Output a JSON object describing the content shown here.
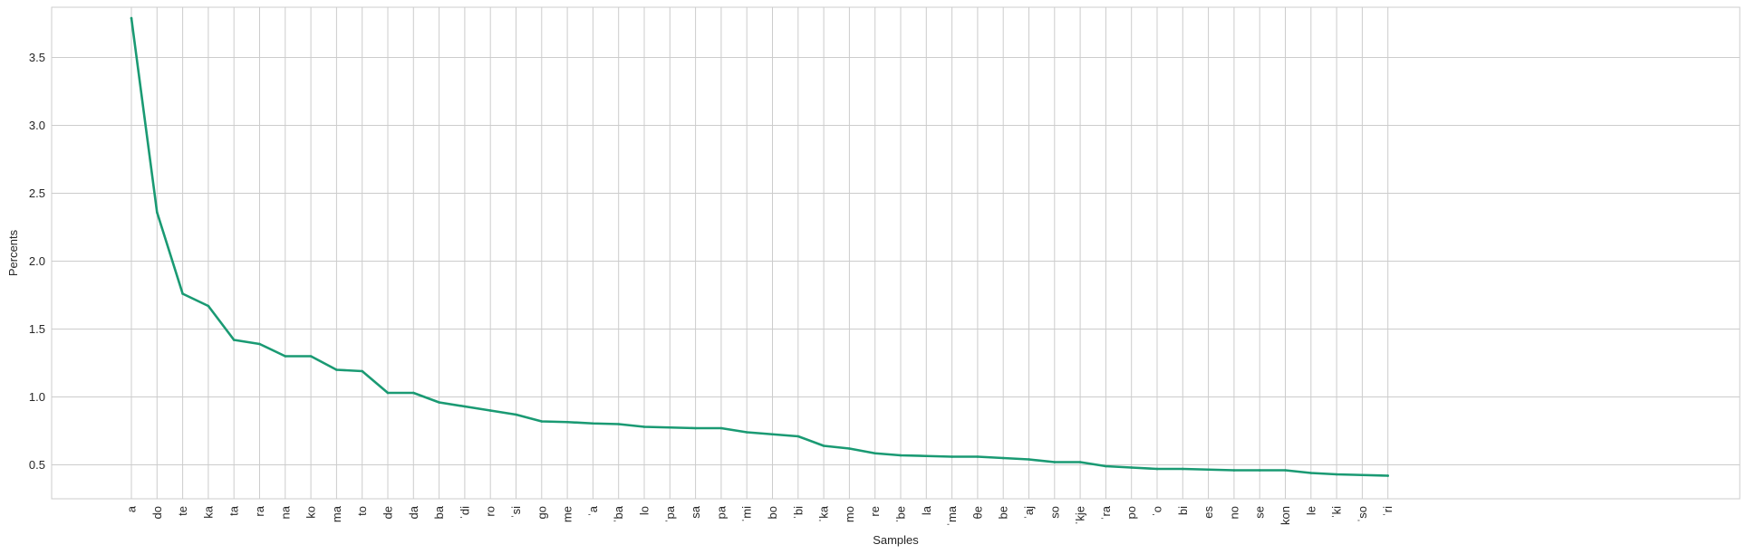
{
  "chart_data": {
    "type": "line",
    "xlabel": "Samples",
    "ylabel": "Percents",
    "ylim": [
      0.25,
      3.87
    ],
    "yticks": [
      0.5,
      1.0,
      1.5,
      2.0,
      2.5,
      3.0,
      3.5
    ],
    "ytick_labels": [
      "0.5",
      "1.0",
      "1.5",
      "2.0",
      "2.5",
      "3.0",
      "3.5"
    ],
    "grid": true,
    "line_color": "#1a9a73",
    "grid_color": "#cccccc",
    "categories": [
      "a",
      "do",
      "te",
      "ka",
      "ta",
      "ra",
      "na",
      "ko",
      "ma",
      "to",
      "de",
      "da",
      "ba",
      "ˈdi",
      "ro",
      "ˈsi",
      "go",
      "me",
      "ˈa",
      "ˈba",
      "lo",
      "ˈpa",
      "sa",
      "pa",
      "ˈmi",
      "bo",
      "ˈbi",
      "ˈka",
      "mo",
      "re",
      "ˈbe",
      "la",
      "ˈma",
      "θe",
      "be",
      "ˈaj",
      "so",
      "ˈkje",
      "ˈra",
      "po",
      "ˈo",
      "bi",
      "es",
      "no",
      "se",
      "kon",
      "le",
      "ˈki",
      "ˈso",
      "ˈri"
    ],
    "series": [
      {
        "values": [
          3.79,
          2.36,
          1.76,
          1.67,
          1.42,
          1.39,
          1.3,
          1.3,
          1.2,
          1.19,
          1.03,
          1.03,
          0.96,
          0.93,
          0.9,
          0.87,
          0.82,
          0.815,
          0.805,
          0.8,
          0.78,
          0.775,
          0.77,
          0.77,
          0.74,
          0.725,
          0.71,
          0.64,
          0.62,
          0.585,
          0.57,
          0.565,
          0.56,
          0.56,
          0.55,
          0.54,
          0.52,
          0.52,
          0.49,
          0.48,
          0.47,
          0.47,
          0.465,
          0.46,
          0.46,
          0.46,
          0.44,
          0.43,
          0.425,
          0.42
        ]
      }
    ]
  }
}
